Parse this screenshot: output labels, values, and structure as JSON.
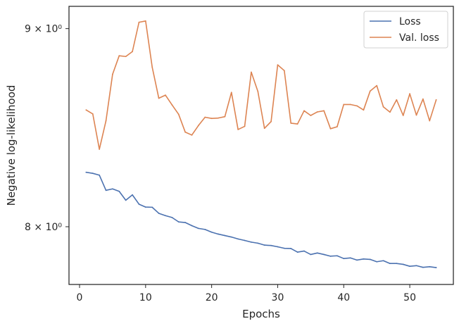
{
  "chart_data": {
    "type": "line",
    "title": "",
    "xlabel": "Epochs",
    "ylabel": "Negative log-likelihood",
    "yscale": "log",
    "xlim": [
      -1.6,
      56.6
    ],
    "ylim": [
      7.73,
      9.12
    ],
    "xticks": [
      0,
      10,
      20,
      30,
      40,
      50
    ],
    "xtick_labels": [
      "0",
      "10",
      "20",
      "30",
      "40",
      "50"
    ],
    "yticks": [
      8,
      9
    ],
    "ytick_labels": [
      "8 × 10⁰",
      "9 × 10⁰"
    ],
    "grid": false,
    "legend_position": "top-right",
    "x": [
      1,
      2,
      3,
      4,
      5,
      6,
      7,
      8,
      9,
      10,
      11,
      12,
      13,
      14,
      15,
      16,
      17,
      18,
      19,
      20,
      21,
      22,
      23,
      24,
      25,
      26,
      27,
      28,
      29,
      30,
      31,
      32,
      33,
      34,
      35,
      36,
      37,
      38,
      39,
      40,
      41,
      42,
      43,
      44,
      45,
      46,
      47,
      48,
      49,
      50,
      51,
      52,
      53,
      54
    ],
    "series": [
      {
        "name": "Loss",
        "color": "#4c72b0",
        "values": [
          8.263,
          8.258,
          8.249,
          8.175,
          8.182,
          8.17,
          8.127,
          8.153,
          8.108,
          8.094,
          8.093,
          8.064,
          8.053,
          8.044,
          8.023,
          8.02,
          8.005,
          7.992,
          7.987,
          7.974,
          7.965,
          7.958,
          7.951,
          7.942,
          7.935,
          7.927,
          7.922,
          7.913,
          7.911,
          7.905,
          7.898,
          7.897,
          7.88,
          7.885,
          7.869,
          7.876,
          7.869,
          7.861,
          7.863,
          7.85,
          7.853,
          7.843,
          7.848,
          7.846,
          7.835,
          7.84,
          7.827,
          7.827,
          7.823,
          7.814,
          7.817,
          7.809,
          7.812,
          7.808
        ]
      },
      {
        "name": "Val. loss",
        "color": "#dd8452",
        "values": [
          8.575,
          8.555,
          8.377,
          8.52,
          8.759,
          8.856,
          8.852,
          8.878,
          9.034,
          9.041,
          8.796,
          8.635,
          8.651,
          8.601,
          8.553,
          8.463,
          8.448,
          8.496,
          8.538,
          8.532,
          8.534,
          8.541,
          8.665,
          8.476,
          8.492,
          8.77,
          8.67,
          8.482,
          8.516,
          8.808,
          8.778,
          8.508,
          8.504,
          8.571,
          8.547,
          8.565,
          8.571,
          8.48,
          8.49,
          8.603,
          8.603,
          8.596,
          8.575,
          8.672,
          8.7,
          8.591,
          8.564,
          8.627,
          8.547,
          8.658,
          8.549,
          8.631,
          8.52,
          8.627
        ]
      }
    ]
  }
}
